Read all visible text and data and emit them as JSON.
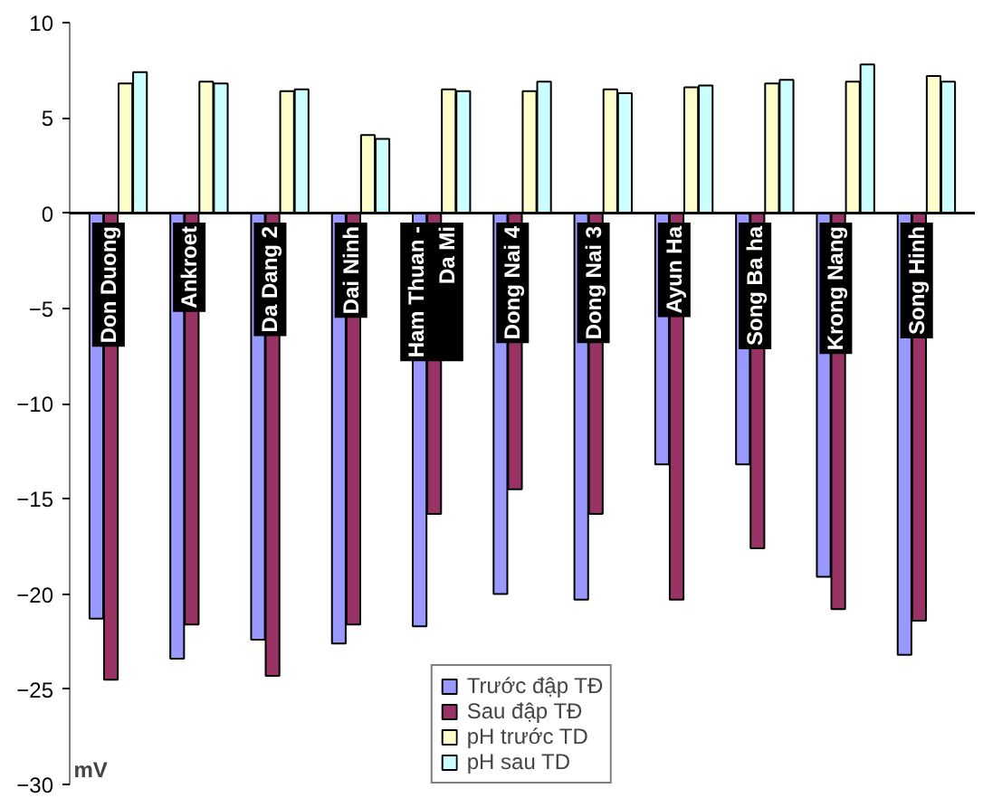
{
  "chart_data": {
    "type": "bar",
    "ylabel": "mV",
    "categories": [
      "Don Duong",
      "Ankroet",
      "Da Dang 2",
      "Dai Ninh",
      "Ham Thuan -\nDa Mi",
      "Dong Nai 4",
      "Dong Nai 3",
      "Ayun Ha",
      "Song Ba ha",
      "Krong Nang",
      "Song Hinh"
    ],
    "series": [
      {
        "name": "Trước đập TĐ",
        "color": "#9999ff",
        "values": [
          -21.3,
          -23.4,
          -22.4,
          -22.6,
          -21.7,
          -20.0,
          -20.3,
          -13.2,
          -13.2,
          -19.1,
          -23.2
        ]
      },
      {
        "name": "Sau đập TĐ",
        "color": "#993366",
        "values": [
          -24.5,
          -21.6,
          -24.3,
          -21.6,
          -15.8,
          -14.5,
          -15.8,
          -20.3,
          -17.6,
          -20.8,
          -21.4
        ]
      },
      {
        "name": "pH trước TD",
        "color": "#ffffcc",
        "values": [
          6.8,
          6.9,
          6.4,
          4.1,
          6.5,
          6.4,
          6.5,
          6.6,
          6.8,
          6.9,
          7.2
        ]
      },
      {
        "name": "pH sau TD",
        "color": "#ccffff",
        "values": [
          7.4,
          6.8,
          6.5,
          3.9,
          6.4,
          6.9,
          6.3,
          6.7,
          7.0,
          7.8,
          6.9
        ]
      }
    ],
    "ylim": [
      -30,
      10
    ],
    "yticks": [
      -30,
      -25,
      -20,
      -15,
      -10,
      -5,
      0,
      5,
      10
    ],
    "grid": false,
    "legend": "bottom"
  }
}
